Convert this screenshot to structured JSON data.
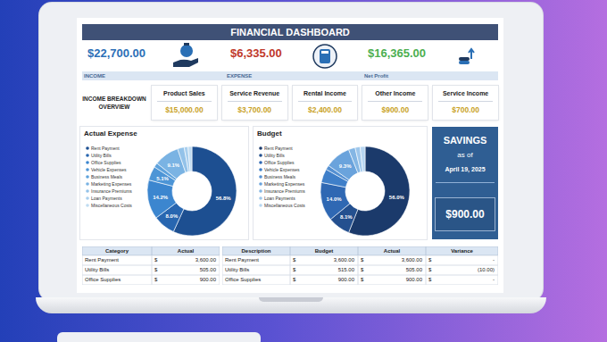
{
  "header": {
    "title": "FINANCIAL DASHBOARD"
  },
  "kpis": [
    {
      "value": "$22,700.00",
      "label": "INCOME"
    },
    {
      "value": "$6,335.00",
      "label": "EXPENSE"
    },
    {
      "value": "$16,365.00",
      "label": "Net Profit"
    }
  ],
  "income_breakdown": {
    "title": "INCOME BREAKDOWN OVERVIEW",
    "items": [
      {
        "label": "Product Sales",
        "value": "$15,000.00"
      },
      {
        "label": "Service Revenue",
        "value": "$3,700.00"
      },
      {
        "label": "Rental Income",
        "value": "$2,400.00"
      },
      {
        "label": "Other Income",
        "value": "$900.00"
      },
      {
        "label": "Service Income",
        "value": "$700.00"
      }
    ]
  },
  "chart_data": [
    {
      "type": "pie",
      "title": "Actual Expense",
      "categories": [
        "Rent Payment",
        "Utility Bills",
        "Office Supplies",
        "Vehicle Expenses",
        "Business Meals",
        "Marketing Expenses",
        "Insurance Premiums",
        "Loan Payments",
        "Miscellaneous Costs"
      ],
      "values": [
        56.8,
        8.0,
        14.2,
        5.1,
        1.6,
        9.1,
        2.4,
        1.4,
        1.4
      ],
      "value_labels": [
        "56.8%",
        "8.0%",
        "14.2%",
        "5.1%",
        null,
        "9.1%",
        null,
        null,
        null
      ],
      "colors": [
        "#1d4f91",
        "#2866b0",
        "#3c86cf",
        "#4d95d6",
        "#5ea2dc",
        "#7ab3e3",
        "#93c2e9",
        "#a9cfee",
        "#c0dcf2"
      ],
      "data_labels": true,
      "legend": "left"
    },
    {
      "type": "pie",
      "title": "Budget",
      "categories": [
        "Rent Payment",
        "Utility Bills",
        "Office Supplies",
        "Vehicle Expenses",
        "Business Meals",
        "Marketing Expenses",
        "Insurance Premiums",
        "Loan Payments",
        "Miscellaneous Costs"
      ],
      "values": [
        56.0,
        8.1,
        14.0,
        5.0,
        1.6,
        9.3,
        2.4,
        1.8,
        1.8
      ],
      "value_labels": [
        "56.0%",
        "8.1%",
        "14.0%",
        null,
        null,
        "9.3%",
        null,
        null,
        null
      ],
      "colors": [
        "#1b3a6b",
        "#24508f",
        "#2f68b3",
        "#3f7fc9",
        "#5590d2",
        "#6aa3dc",
        "#84b6e4",
        "#9dc6eb",
        "#b7d6f1"
      ],
      "data_labels": true,
      "legend": "left"
    }
  ],
  "savings": {
    "title": "SAVINGS",
    "as_of": "as of",
    "date": "April 19, 2025",
    "value": "$900.00"
  },
  "expense_table": {
    "currency": "$",
    "columns": [
      "Category",
      "Actual"
    ],
    "rows": [
      [
        "Rent Payment",
        "3,600.00"
      ],
      [
        "Utility Bills",
        "505.00"
      ],
      [
        "Office Supplies",
        "900.00"
      ]
    ]
  },
  "budget_table": {
    "currency": "$",
    "columns": [
      "Description",
      "Budget",
      "Actual",
      "Variance"
    ],
    "rows": [
      [
        "Rent Payment",
        "3,600.00",
        "3,600.00",
        "-"
      ],
      [
        "Utility Bills",
        "515.00",
        "505.00",
        "(10.00)"
      ],
      [
        "Office Supplies",
        "900.00",
        "900.00",
        "-"
      ]
    ]
  }
}
